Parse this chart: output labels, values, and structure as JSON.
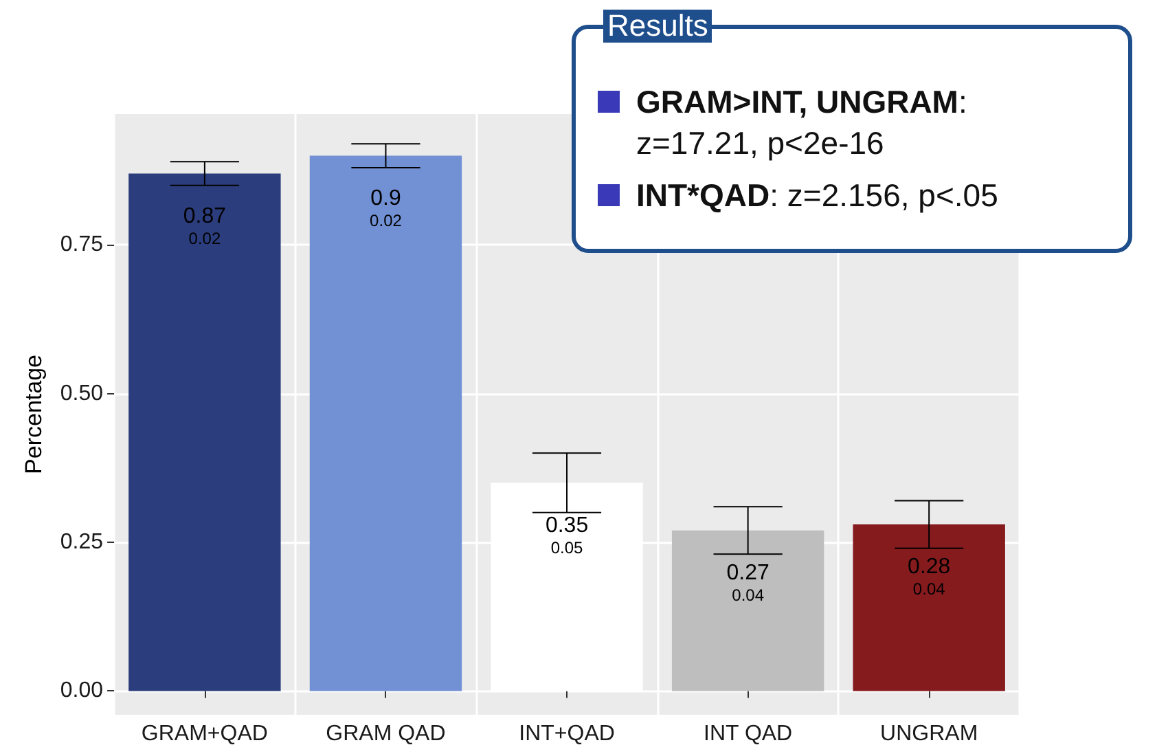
{
  "chart_data": {
    "type": "bar",
    "ylabel": "Percentage",
    "categories": [
      "GRAM+QAD",
      "GRAM QAD",
      "INT+QAD",
      "INT QAD",
      "UNGRAM"
    ],
    "values": [
      0.87,
      0.9,
      0.35,
      0.27,
      0.28
    ],
    "colors": [
      "#2b3d7c",
      "#7290d4",
      "#ffffff",
      "#bebebe",
      "#861b1e"
    ],
    "errors": [
      0.02,
      0.02,
      0.05,
      0.04,
      0.04
    ],
    "value_labels": [
      "0.87\n0.02",
      "0.9\n0.02",
      "0.35\n0.05",
      "0.27\n0.04",
      "0.28\n0.04"
    ],
    "ylim": [
      -0.04,
      0.97
    ],
    "yticks": [
      {
        "value": 0,
        "label": "0.00"
      },
      {
        "value": 0.25,
        "label": "0.25"
      },
      {
        "value": 0.5,
        "label": "0.50"
      },
      {
        "value": 0.75,
        "label": "0.75"
      }
    ],
    "grid": true,
    "annotations": [
      "Results",
      "GRAM>INT, UNGRAM: z=17.21, p<2e-16",
      "INT*QAD: z=2.156, p<.05"
    ]
  }
}
